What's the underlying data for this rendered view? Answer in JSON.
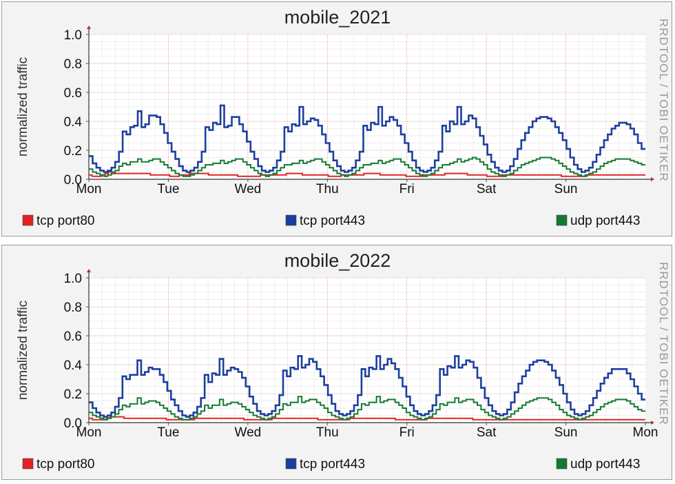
{
  "vertical_label": "RRDTOOL / TOBI OETIKER",
  "chart_data": [
    {
      "type": "line",
      "title": "mobile_2021",
      "ylabel": "normalized traffic",
      "ylim": [
        0,
        1.0
      ],
      "yticks": [
        "0.0",
        "0.2",
        "0.4",
        "0.6",
        "0.8",
        "1.0"
      ],
      "xticks": [
        "Mon",
        "Tue",
        "Wed",
        "Thu",
        "Fri",
        "Sat",
        "Sun"
      ],
      "grid": true,
      "legend_position": "bottom",
      "series": [
        {
          "name": "tcp port80",
          "color": "#e32222",
          "values": [
            0.03,
            0.02,
            0.02,
            0.02,
            0.03,
            0.04,
            0.05,
            0.05,
            0.04,
            0.04,
            0.04,
            0.04,
            0.04,
            0.04,
            0.04,
            0.04,
            0.04,
            0.04,
            0.04,
            0.03,
            0.03,
            0.03,
            0.03,
            0.03,
            0.03,
            0.02,
            0.02,
            0.02,
            0.03,
            0.03,
            0.03,
            0.04,
            0.04,
            0.04,
            0.04,
            0.04,
            0.04,
            0.03,
            0.03,
            0.03,
            0.03,
            0.03,
            0.03,
            0.03,
            0.03,
            0.03,
            0.02,
            0.02,
            0.02,
            0.02,
            0.02,
            0.02,
            0.02,
            0.03,
            0.03,
            0.03,
            0.03,
            0.03,
            0.03,
            0.03,
            0.03,
            0.04,
            0.04,
            0.04,
            0.04,
            0.04,
            0.03,
            0.03,
            0.03,
            0.03,
            0.03,
            0.03,
            0.03,
            0.03,
            0.02,
            0.02,
            0.02,
            0.02,
            0.03,
            0.03,
            0.03,
            0.03,
            0.03,
            0.03,
            0.03,
            0.04,
            0.04,
            0.04,
            0.04,
            0.04,
            0.03,
            0.03,
            0.03,
            0.03,
            0.03,
            0.03,
            0.03,
            0.03,
            0.02,
            0.02,
            0.02,
            0.02,
            0.02,
            0.03,
            0.03,
            0.03,
            0.03,
            0.03,
            0.03,
            0.03,
            0.04,
            0.04,
            0.04,
            0.04,
            0.04,
            0.04,
            0.04,
            0.03,
            0.03,
            0.03,
            0.03,
            0.03,
            0.03,
            0.02,
            0.02,
            0.02,
            0.02,
            0.02,
            0.03,
            0.03,
            0.03,
            0.03,
            0.03,
            0.03,
            0.03,
            0.03,
            0.03,
            0.03,
            0.03,
            0.03,
            0.03,
            0.03,
            0.03,
            0.03,
            0.03,
            0.03,
            0.02,
            0.02,
            0.02,
            0.02,
            0.02,
            0.02,
            0.02,
            0.02,
            0.03,
            0.03,
            0.03,
            0.03,
            0.03,
            0.03,
            0.03,
            0.03,
            0.03,
            0.03,
            0.03,
            0.03,
            0.03,
            0.03,
            0.03,
            0.03,
            0.03,
            0.03
          ]
        },
        {
          "name": "tcp port443",
          "color": "#1b3f9e",
          "values": [
            0.16,
            0.11,
            0.08,
            0.06,
            0.05,
            0.06,
            0.08,
            0.12,
            0.19,
            0.33,
            0.31,
            0.36,
            0.37,
            0.47,
            0.36,
            0.38,
            0.44,
            0.44,
            0.43,
            0.38,
            0.32,
            0.25,
            0.19,
            0.14,
            0.09,
            0.06,
            0.05,
            0.06,
            0.08,
            0.12,
            0.19,
            0.36,
            0.34,
            0.39,
            0.38,
            0.51,
            0.36,
            0.37,
            0.43,
            0.43,
            0.38,
            0.33,
            0.26,
            0.19,
            0.14,
            0.09,
            0.06,
            0.05,
            0.06,
            0.08,
            0.13,
            0.19,
            0.36,
            0.33,
            0.38,
            0.37,
            0.5,
            0.38,
            0.4,
            0.42,
            0.41,
            0.37,
            0.31,
            0.25,
            0.19,
            0.13,
            0.09,
            0.06,
            0.05,
            0.06,
            0.08,
            0.13,
            0.19,
            0.37,
            0.34,
            0.39,
            0.38,
            0.5,
            0.37,
            0.4,
            0.43,
            0.41,
            0.37,
            0.31,
            0.25,
            0.19,
            0.13,
            0.08,
            0.06,
            0.05,
            0.06,
            0.08,
            0.13,
            0.19,
            0.37,
            0.33,
            0.4,
            0.38,
            0.5,
            0.38,
            0.4,
            0.44,
            0.42,
            0.36,
            0.3,
            0.24,
            0.17,
            0.12,
            0.08,
            0.06,
            0.05,
            0.06,
            0.09,
            0.14,
            0.21,
            0.27,
            0.32,
            0.36,
            0.4,
            0.42,
            0.43,
            0.43,
            0.42,
            0.4,
            0.36,
            0.32,
            0.27,
            0.21,
            0.15,
            0.1,
            0.07,
            0.05,
            0.06,
            0.08,
            0.12,
            0.17,
            0.22,
            0.27,
            0.31,
            0.35,
            0.37,
            0.39,
            0.39,
            0.38,
            0.35,
            0.31,
            0.25,
            0.21
          ]
        },
        {
          "name": "udp port443",
          "color": "#127a2f",
          "values": [
            0.07,
            0.05,
            0.04,
            0.03,
            0.02,
            0.03,
            0.04,
            0.06,
            0.09,
            0.11,
            0.1,
            0.12,
            0.12,
            0.14,
            0.12,
            0.12,
            0.13,
            0.14,
            0.14,
            0.12,
            0.1,
            0.08,
            0.06,
            0.04,
            0.03,
            0.02,
            0.02,
            0.03,
            0.04,
            0.06,
            0.08,
            0.1,
            0.1,
            0.11,
            0.11,
            0.13,
            0.11,
            0.12,
            0.13,
            0.14,
            0.14,
            0.12,
            0.1,
            0.08,
            0.06,
            0.04,
            0.03,
            0.02,
            0.03,
            0.04,
            0.06,
            0.08,
            0.1,
            0.1,
            0.11,
            0.11,
            0.13,
            0.11,
            0.12,
            0.13,
            0.14,
            0.14,
            0.12,
            0.1,
            0.08,
            0.06,
            0.04,
            0.03,
            0.02,
            0.03,
            0.04,
            0.06,
            0.08,
            0.1,
            0.1,
            0.11,
            0.11,
            0.13,
            0.11,
            0.12,
            0.13,
            0.14,
            0.14,
            0.12,
            0.1,
            0.08,
            0.06,
            0.04,
            0.03,
            0.02,
            0.03,
            0.04,
            0.06,
            0.08,
            0.1,
            0.1,
            0.11,
            0.12,
            0.14,
            0.12,
            0.13,
            0.14,
            0.15,
            0.14,
            0.12,
            0.1,
            0.07,
            0.05,
            0.04,
            0.03,
            0.02,
            0.03,
            0.04,
            0.06,
            0.08,
            0.1,
            0.11,
            0.12,
            0.13,
            0.14,
            0.15,
            0.15,
            0.15,
            0.14,
            0.13,
            0.11,
            0.09,
            0.07,
            0.05,
            0.04,
            0.03,
            0.02,
            0.03,
            0.04,
            0.05,
            0.07,
            0.09,
            0.11,
            0.12,
            0.13,
            0.14,
            0.14,
            0.14,
            0.14,
            0.13,
            0.12,
            0.11,
            0.1
          ]
        }
      ]
    },
    {
      "type": "line",
      "title": "mobile_2022",
      "ylabel": "normalized traffic",
      "ylim": [
        0,
        1.0
      ],
      "yticks": [
        "0.0",
        "0.2",
        "0.4",
        "0.6",
        "0.8",
        "1.0"
      ],
      "xticks": [
        "Mon",
        "Tue",
        "Wed",
        "Thu",
        "Fri",
        "Sat",
        "Sun",
        "Mon"
      ],
      "grid": true,
      "legend_position": "bottom",
      "series": [
        {
          "name": "tcp port80",
          "color": "#e32222",
          "values": [
            0.03,
            0.02,
            0.02,
            0.02,
            0.02,
            0.03,
            0.04,
            0.04,
            0.04,
            0.04,
            0.03,
            0.03,
            0.03,
            0.03,
            0.03,
            0.03,
            0.03,
            0.03,
            0.03,
            0.03,
            0.03,
            0.03,
            0.02,
            0.02,
            0.02,
            0.02,
            0.02,
            0.02,
            0.02,
            0.02,
            0.03,
            0.03,
            0.03,
            0.03,
            0.03,
            0.03,
            0.03,
            0.03,
            0.03,
            0.03,
            0.03,
            0.03,
            0.03,
            0.03,
            0.02,
            0.02,
            0.02,
            0.02,
            0.02,
            0.02,
            0.02,
            0.02,
            0.03,
            0.03,
            0.03,
            0.03,
            0.03,
            0.03,
            0.03,
            0.03,
            0.03,
            0.03,
            0.03,
            0.03,
            0.03,
            0.02,
            0.02,
            0.02,
            0.02,
            0.02,
            0.02,
            0.02,
            0.02,
            0.02,
            0.03,
            0.03,
            0.03,
            0.03,
            0.03,
            0.03,
            0.03,
            0.03,
            0.03,
            0.03,
            0.03,
            0.03,
            0.03,
            0.02,
            0.02,
            0.02,
            0.02,
            0.02,
            0.02,
            0.02,
            0.02,
            0.02,
            0.03,
            0.03,
            0.03,
            0.03,
            0.03,
            0.03,
            0.03,
            0.03,
            0.03,
            0.03,
            0.03,
            0.03,
            0.03,
            0.02,
            0.02,
            0.02,
            0.02,
            0.02,
            0.02,
            0.02,
            0.02,
            0.02,
            0.02,
            0.02,
            0.02,
            0.02,
            0.02,
            0.02,
            0.02,
            0.02,
            0.02,
            0.02,
            0.02,
            0.02,
            0.02,
            0.02,
            0.02,
            0.02,
            0.02,
            0.02,
            0.02,
            0.02,
            0.02,
            0.02,
            0.02,
            0.02,
            0.02,
            0.02,
            0.02,
            0.02,
            0.02,
            0.02,
            0.02,
            0.02,
            0.02,
            0.02,
            0.02,
            0.02,
            0.02,
            0.02,
            0.02,
            0.02
          ]
        },
        {
          "name": "tcp port443",
          "color": "#1b3f9e",
          "values": [
            0.14,
            0.1,
            0.07,
            0.05,
            0.04,
            0.05,
            0.07,
            0.11,
            0.17,
            0.32,
            0.3,
            0.33,
            0.33,
            0.43,
            0.33,
            0.35,
            0.38,
            0.37,
            0.37,
            0.33,
            0.28,
            0.22,
            0.16,
            0.12,
            0.08,
            0.05,
            0.04,
            0.05,
            0.07,
            0.11,
            0.17,
            0.33,
            0.28,
            0.34,
            0.33,
            0.44,
            0.33,
            0.36,
            0.38,
            0.37,
            0.35,
            0.31,
            0.25,
            0.18,
            0.13,
            0.08,
            0.06,
            0.05,
            0.06,
            0.08,
            0.12,
            0.19,
            0.36,
            0.32,
            0.38,
            0.37,
            0.46,
            0.38,
            0.4,
            0.44,
            0.42,
            0.37,
            0.32,
            0.26,
            0.19,
            0.13,
            0.08,
            0.06,
            0.05,
            0.06,
            0.08,
            0.12,
            0.19,
            0.37,
            0.32,
            0.38,
            0.37,
            0.46,
            0.37,
            0.4,
            0.44,
            0.41,
            0.37,
            0.31,
            0.25,
            0.18,
            0.12,
            0.08,
            0.06,
            0.05,
            0.06,
            0.08,
            0.12,
            0.19,
            0.37,
            0.33,
            0.39,
            0.38,
            0.46,
            0.38,
            0.4,
            0.43,
            0.42,
            0.38,
            0.31,
            0.24,
            0.17,
            0.12,
            0.08,
            0.06,
            0.05,
            0.06,
            0.09,
            0.14,
            0.21,
            0.27,
            0.32,
            0.36,
            0.4,
            0.42,
            0.43,
            0.43,
            0.42,
            0.4,
            0.36,
            0.31,
            0.26,
            0.2,
            0.14,
            0.09,
            0.06,
            0.05,
            0.06,
            0.08,
            0.12,
            0.17,
            0.22,
            0.27,
            0.31,
            0.34,
            0.37,
            0.37,
            0.37,
            0.37,
            0.34,
            0.3,
            0.25,
            0.2,
            0.16
          ]
        },
        {
          "name": "udp port443",
          "color": "#127a2f",
          "values": [
            0.07,
            0.05,
            0.04,
            0.03,
            0.02,
            0.03,
            0.04,
            0.06,
            0.09,
            0.12,
            0.11,
            0.13,
            0.13,
            0.17,
            0.13,
            0.14,
            0.15,
            0.15,
            0.14,
            0.12,
            0.1,
            0.08,
            0.06,
            0.04,
            0.03,
            0.02,
            0.02,
            0.03,
            0.04,
            0.06,
            0.08,
            0.12,
            0.1,
            0.12,
            0.12,
            0.16,
            0.12,
            0.13,
            0.14,
            0.14,
            0.13,
            0.11,
            0.09,
            0.07,
            0.05,
            0.04,
            0.03,
            0.02,
            0.03,
            0.04,
            0.06,
            0.09,
            0.13,
            0.12,
            0.14,
            0.14,
            0.18,
            0.14,
            0.15,
            0.16,
            0.16,
            0.14,
            0.12,
            0.1,
            0.07,
            0.05,
            0.04,
            0.03,
            0.02,
            0.03,
            0.04,
            0.06,
            0.09,
            0.13,
            0.12,
            0.14,
            0.14,
            0.18,
            0.14,
            0.15,
            0.16,
            0.16,
            0.14,
            0.12,
            0.1,
            0.07,
            0.05,
            0.04,
            0.03,
            0.02,
            0.03,
            0.04,
            0.06,
            0.09,
            0.13,
            0.12,
            0.14,
            0.14,
            0.17,
            0.14,
            0.15,
            0.16,
            0.16,
            0.14,
            0.12,
            0.09,
            0.07,
            0.05,
            0.04,
            0.03,
            0.02,
            0.03,
            0.04,
            0.06,
            0.08,
            0.1,
            0.12,
            0.14,
            0.15,
            0.16,
            0.17,
            0.17,
            0.17,
            0.16,
            0.14,
            0.12,
            0.09,
            0.07,
            0.05,
            0.04,
            0.03,
            0.02,
            0.03,
            0.04,
            0.05,
            0.07,
            0.09,
            0.11,
            0.13,
            0.14,
            0.15,
            0.16,
            0.16,
            0.16,
            0.15,
            0.13,
            0.11,
            0.09,
            0.08
          ]
        }
      ]
    }
  ]
}
